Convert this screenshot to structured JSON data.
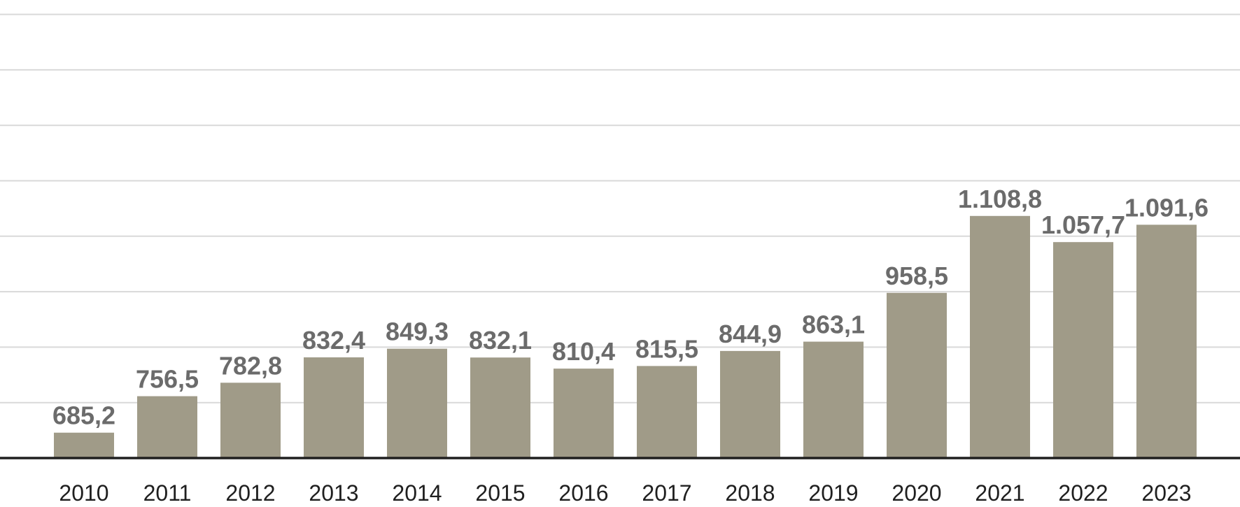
{
  "chart_data": {
    "type": "bar",
    "categories": [
      "2010",
      "2011",
      "2012",
      "2013",
      "2014",
      "2015",
      "2016",
      "2017",
      "2018",
      "2019",
      "2020",
      "2021",
      "2022",
      "2023"
    ],
    "values": [
      685.2,
      756.5,
      782.8,
      832.4,
      849.3,
      832.1,
      810.4,
      815.5,
      844.9,
      863.1,
      958.5,
      1108.8,
      1057.7,
      1091.6
    ],
    "value_labels": [
      "685,2",
      "756,5",
      "782,8",
      "832,4",
      "849,3",
      "832,1",
      "810,4",
      "815,5",
      "844,9",
      "863,1",
      "958,5",
      "1.108,8",
      "1.057,7",
      "1.091,6"
    ],
    "title": "",
    "xlabel": "",
    "ylabel": "",
    "ylim": [
      400,
      1200
    ],
    "grid": true,
    "legend": "none",
    "colors": {
      "bar": "#a09b88",
      "value_label": "#6b6b6b",
      "tick_label": "#1f1f1f",
      "grid": "#d9d9d9",
      "baseline": "#1f1f1f"
    }
  }
}
